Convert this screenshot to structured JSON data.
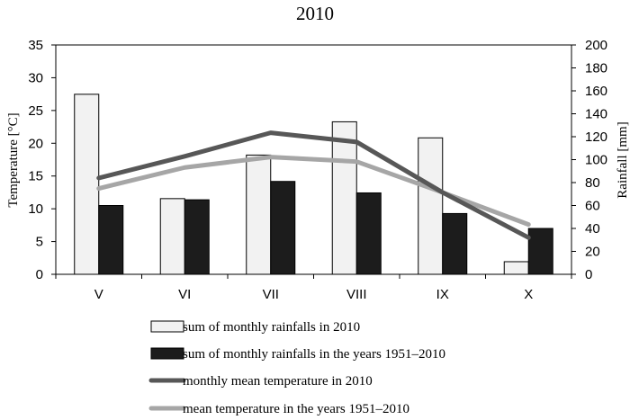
{
  "chart_data": {
    "type": "bar",
    "title": "2010",
    "categories": [
      "V",
      "VI",
      "VII",
      "VIII",
      "IX",
      "X"
    ],
    "y_left": {
      "label": "Temperature [°C]",
      "range": [
        0,
        35
      ],
      "ticks": [
        0,
        5,
        10,
        15,
        20,
        25,
        30,
        35
      ]
    },
    "y_right": {
      "label": "Rainfall [mm]",
      "range": [
        0,
        200
      ],
      "ticks": [
        0,
        20,
        40,
        60,
        80,
        100,
        120,
        140,
        160,
        180,
        200
      ]
    },
    "grid": false,
    "legend_position": "bottom",
    "series": [
      {
        "name": "sum of monthly rainfalls in 2010",
        "kind": "bar",
        "axis": "right",
        "color": "#f2f2f2",
        "stroke": "#000000",
        "values": [
          157,
          66,
          104,
          133,
          119,
          11
        ]
      },
      {
        "name": "sum of monthly rainfalls in the years 1951–2010",
        "kind": "bar",
        "axis": "right",
        "color": "#1c1c1c",
        "stroke": "#000000",
        "values": [
          60,
          65,
          81,
          71,
          53,
          40
        ]
      },
      {
        "name": "monthly mean temperature in 2010",
        "kind": "line",
        "axis": "left",
        "color": "#575757",
        "values": [
          14.7,
          18.0,
          21.6,
          20.2,
          12.5,
          5.6
        ]
      },
      {
        "name": "mean temperature in the years 1951–2010",
        "kind": "line",
        "axis": "left",
        "color": "#a6a6a6",
        "values": [
          13.1,
          16.3,
          17.9,
          17.2,
          12.5,
          7.6
        ]
      }
    ]
  }
}
